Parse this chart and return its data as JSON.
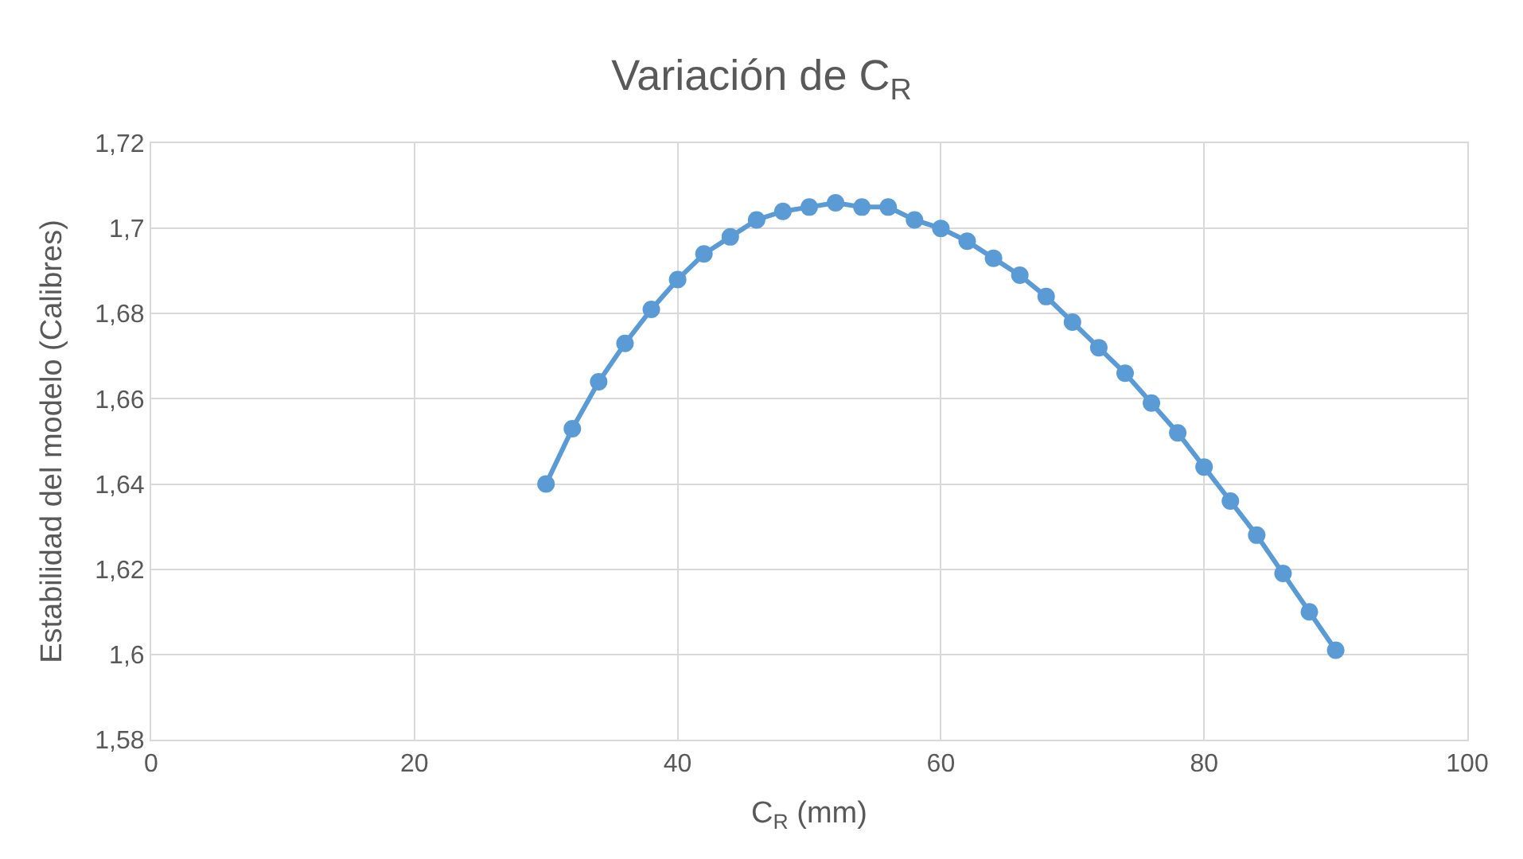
{
  "chart_data": {
    "type": "line",
    "title": "Variación de C$_{R}$",
    "xlabel": "C$_{R}$ (mm)",
    "ylabel": "Estabilidad del modelo (Calibres)",
    "x": [
      30,
      32,
      34,
      36,
      38,
      40,
      42,
      44,
      46,
      48,
      50,
      52,
      54,
      56,
      58,
      60,
      62,
      64,
      66,
      68,
      70,
      72,
      74,
      76,
      78,
      80,
      82,
      84,
      86,
      88,
      90
    ],
    "series": [
      {
        "color": "#5b9bd5",
        "values": [
          1.64,
          1.653,
          1.664,
          1.673,
          1.681,
          1.688,
          1.694,
          1.698,
          1.702,
          1.704,
          1.705,
          1.706,
          1.705,
          1.705,
          1.702,
          1.7,
          1.697,
          1.693,
          1.689,
          1.684,
          1.678,
          1.672,
          1.666,
          1.659,
          1.652,
          1.644,
          1.636,
          1.628,
          1.619,
          1.61,
          1.601
        ]
      }
    ],
    "xlim": [
      0,
      100
    ],
    "xticks": [
      0,
      20,
      40,
      60,
      80,
      100
    ],
    "ylim": [
      1.58,
      1.72
    ],
    "yticks": [
      {
        "value": 1.58,
        "label": "1,58"
      },
      {
        "value": 1.6,
        "label": "1,6"
      },
      {
        "value": 1.62,
        "label": "1,62"
      },
      {
        "value": 1.64,
        "label": "1,64"
      },
      {
        "value": 1.66,
        "label": "1,66"
      },
      {
        "value": 1.68,
        "label": "1,68"
      },
      {
        "value": 1.7,
        "label": "1,7"
      },
      {
        "value": 1.72,
        "label": "1,72"
      }
    ],
    "grid": true,
    "marker": "circle",
    "line_style": "solid",
    "legend": false
  }
}
